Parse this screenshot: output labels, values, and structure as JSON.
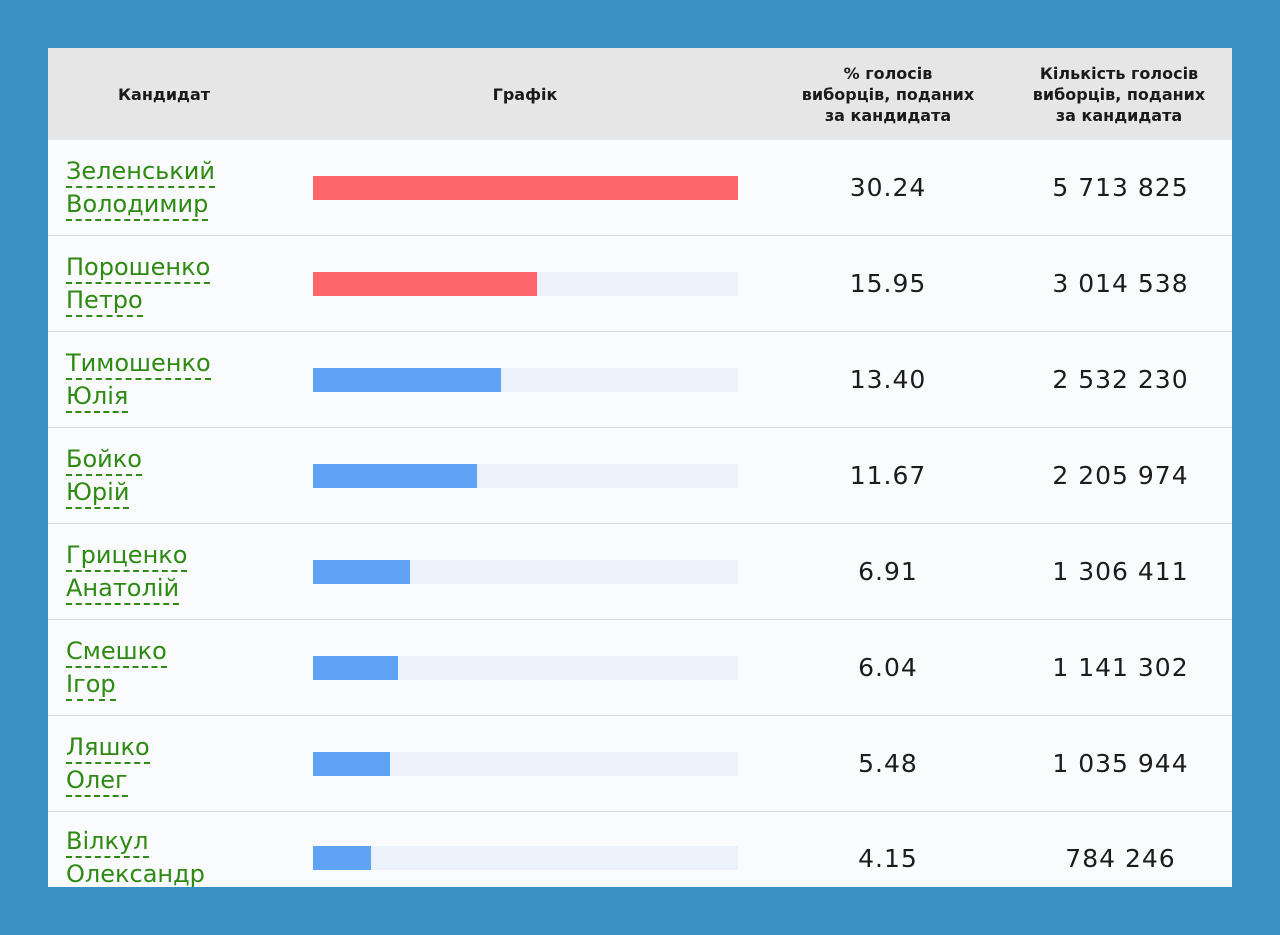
{
  "headers": {
    "candidate": "Кандидат",
    "chart": "Графік",
    "percent_lines": [
      "% голосів",
      "виборців, поданих",
      "за кандидата"
    ],
    "votes_lines": [
      "Кількість голосів",
      "виборців, поданих",
      "за кандидата"
    ]
  },
  "colors": {
    "leader_bar": "#ff666b",
    "other_bar": "#5fa3f5",
    "bar_track": "#edf1fb",
    "link": "#2e8a13"
  },
  "candidates": [
    {
      "surname": "Зеленський",
      "given": "Володимир",
      "percent": "30.24",
      "votes": "5 713 825",
      "share": 30.24,
      "bar": "leader"
    },
    {
      "surname": "Порошенко",
      "given": "Петро",
      "percent": "15.95",
      "votes": "3 014 538",
      "share": 15.95,
      "bar": "leader"
    },
    {
      "surname": "Тимошенко",
      "given": "Юлія",
      "percent": "13.40",
      "votes": "2 532 230",
      "share": 13.4,
      "bar": "other"
    },
    {
      "surname": "Бойко",
      "given": "Юрій",
      "percent": "11.67",
      "votes": "2 205 974",
      "share": 11.67,
      "bar": "other"
    },
    {
      "surname": "Гриценко",
      "given": "Анатолій",
      "percent": "6.91",
      "votes": "1 306 411",
      "share": 6.91,
      "bar": "other"
    },
    {
      "surname": "Смешко",
      "given": "Ігор",
      "percent": "6.04",
      "votes": "1 141 302",
      "share": 6.04,
      "bar": "other"
    },
    {
      "surname": "Ляшко",
      "given": "Олег",
      "percent": "5.48",
      "votes": "1 035 944",
      "share": 5.48,
      "bar": "other"
    },
    {
      "surname": "Вілкул",
      "given": "Олександр",
      "percent": "4.15",
      "votes": "784 246",
      "share": 4.15,
      "bar": "other"
    }
  ]
}
